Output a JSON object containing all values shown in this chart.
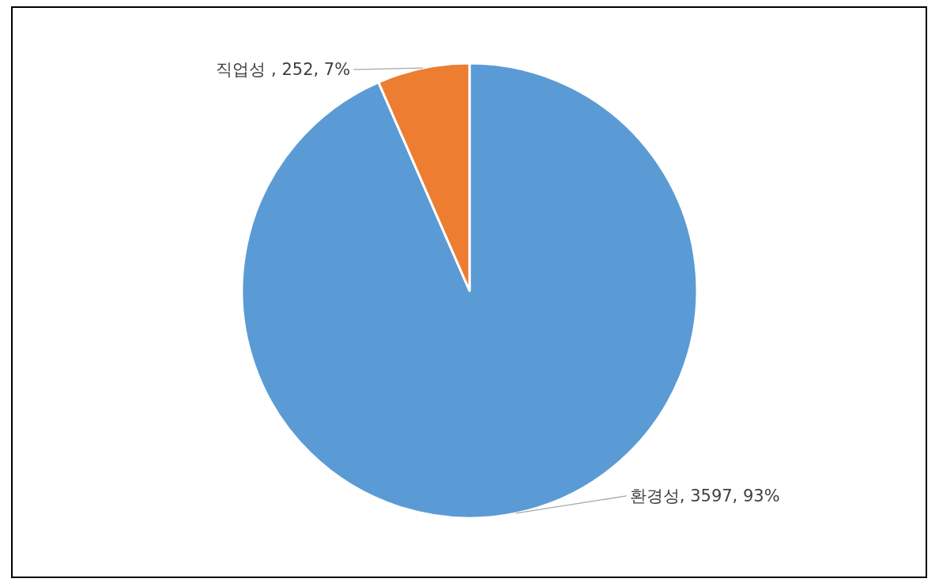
{
  "chart_data": {
    "type": "pie",
    "categories": [
      "환경성",
      "직업성"
    ],
    "values": [
      3597,
      252
    ],
    "colors": [
      "#5b9bd5",
      "#ed7d31"
    ],
    "value_labels": [
      ", 3597, 93%",
      " , 252, 7%"
    ]
  }
}
